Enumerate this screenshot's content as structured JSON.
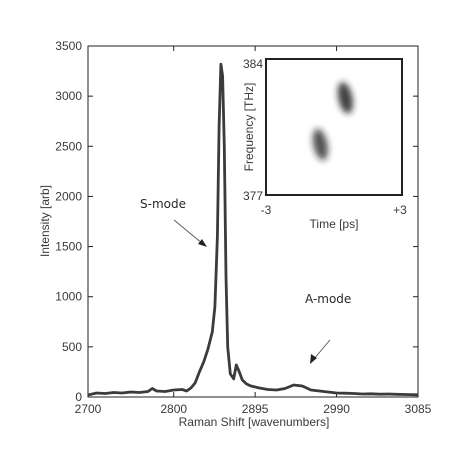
{
  "chart_data": [
    {
      "type": "line",
      "xlabel": "Raman Shift [wavenumbers]",
      "ylabel": "Intensity [arb]",
      "xlim": [
        2700,
        3085
      ],
      "ylim": [
        0,
        3500
      ],
      "xticks": [
        "2700",
        "2800",
        "2895",
        "2990",
        "3085"
      ],
      "yticks": [
        "0",
        "500",
        "1000",
        "1500",
        "2000",
        "2500",
        "3000",
        "3500"
      ],
      "grid": false,
      "series": [
        {
          "x": [
            2700,
            2710,
            2720,
            2730,
            2740,
            2750,
            2760,
            2770,
            2775,
            2780,
            2790,
            2800,
            2810,
            2815,
            2820,
            2825,
            2830,
            2835,
            2840,
            2845,
            2848,
            2851,
            2853,
            2855,
            2857,
            2859,
            2861,
            2863,
            2866,
            2870,
            2873,
            2876,
            2880,
            2885,
            2890,
            2900,
            2910,
            2920,
            2930,
            2940,
            2950,
            2960,
            2970,
            2980,
            2990,
            3000,
            3010,
            3020,
            3030,
            3040,
            3050,
            3060,
            3070,
            3085
          ],
          "y": [
            20,
            40,
            35,
            45,
            40,
            50,
            45,
            55,
            85,
            60,
            55,
            70,
            75,
            60,
            90,
            140,
            250,
            350,
            480,
            650,
            900,
            1600,
            2700,
            3320,
            3200,
            2500,
            1200,
            500,
            230,
            180,
            320,
            260,
            170,
            130,
            110,
            90,
            75,
            70,
            85,
            120,
            110,
            70,
            60,
            50,
            40,
            38,
            35,
            30,
            32,
            28,
            30,
            27,
            25,
            22
          ]
        }
      ],
      "annotations": [
        {
          "text": "S-mode"
        },
        {
          "text": "A-mode"
        }
      ]
    },
    {
      "type": "heatmap",
      "xlabel": "Time [ps]",
      "ylabel": "Frequency [THz]",
      "xlim": [
        -3,
        3
      ],
      "ylim": [
        377,
        384
      ],
      "xticks": [
        "-3",
        "+3"
      ],
      "yticks": [
        "377",
        "384"
      ],
      "blobs": [
        {
          "t": 0.5,
          "f": 382.0,
          "intensity": 0.85
        },
        {
          "t": -0.6,
          "f": 379.6,
          "intensity": 0.75
        }
      ]
    }
  ]
}
